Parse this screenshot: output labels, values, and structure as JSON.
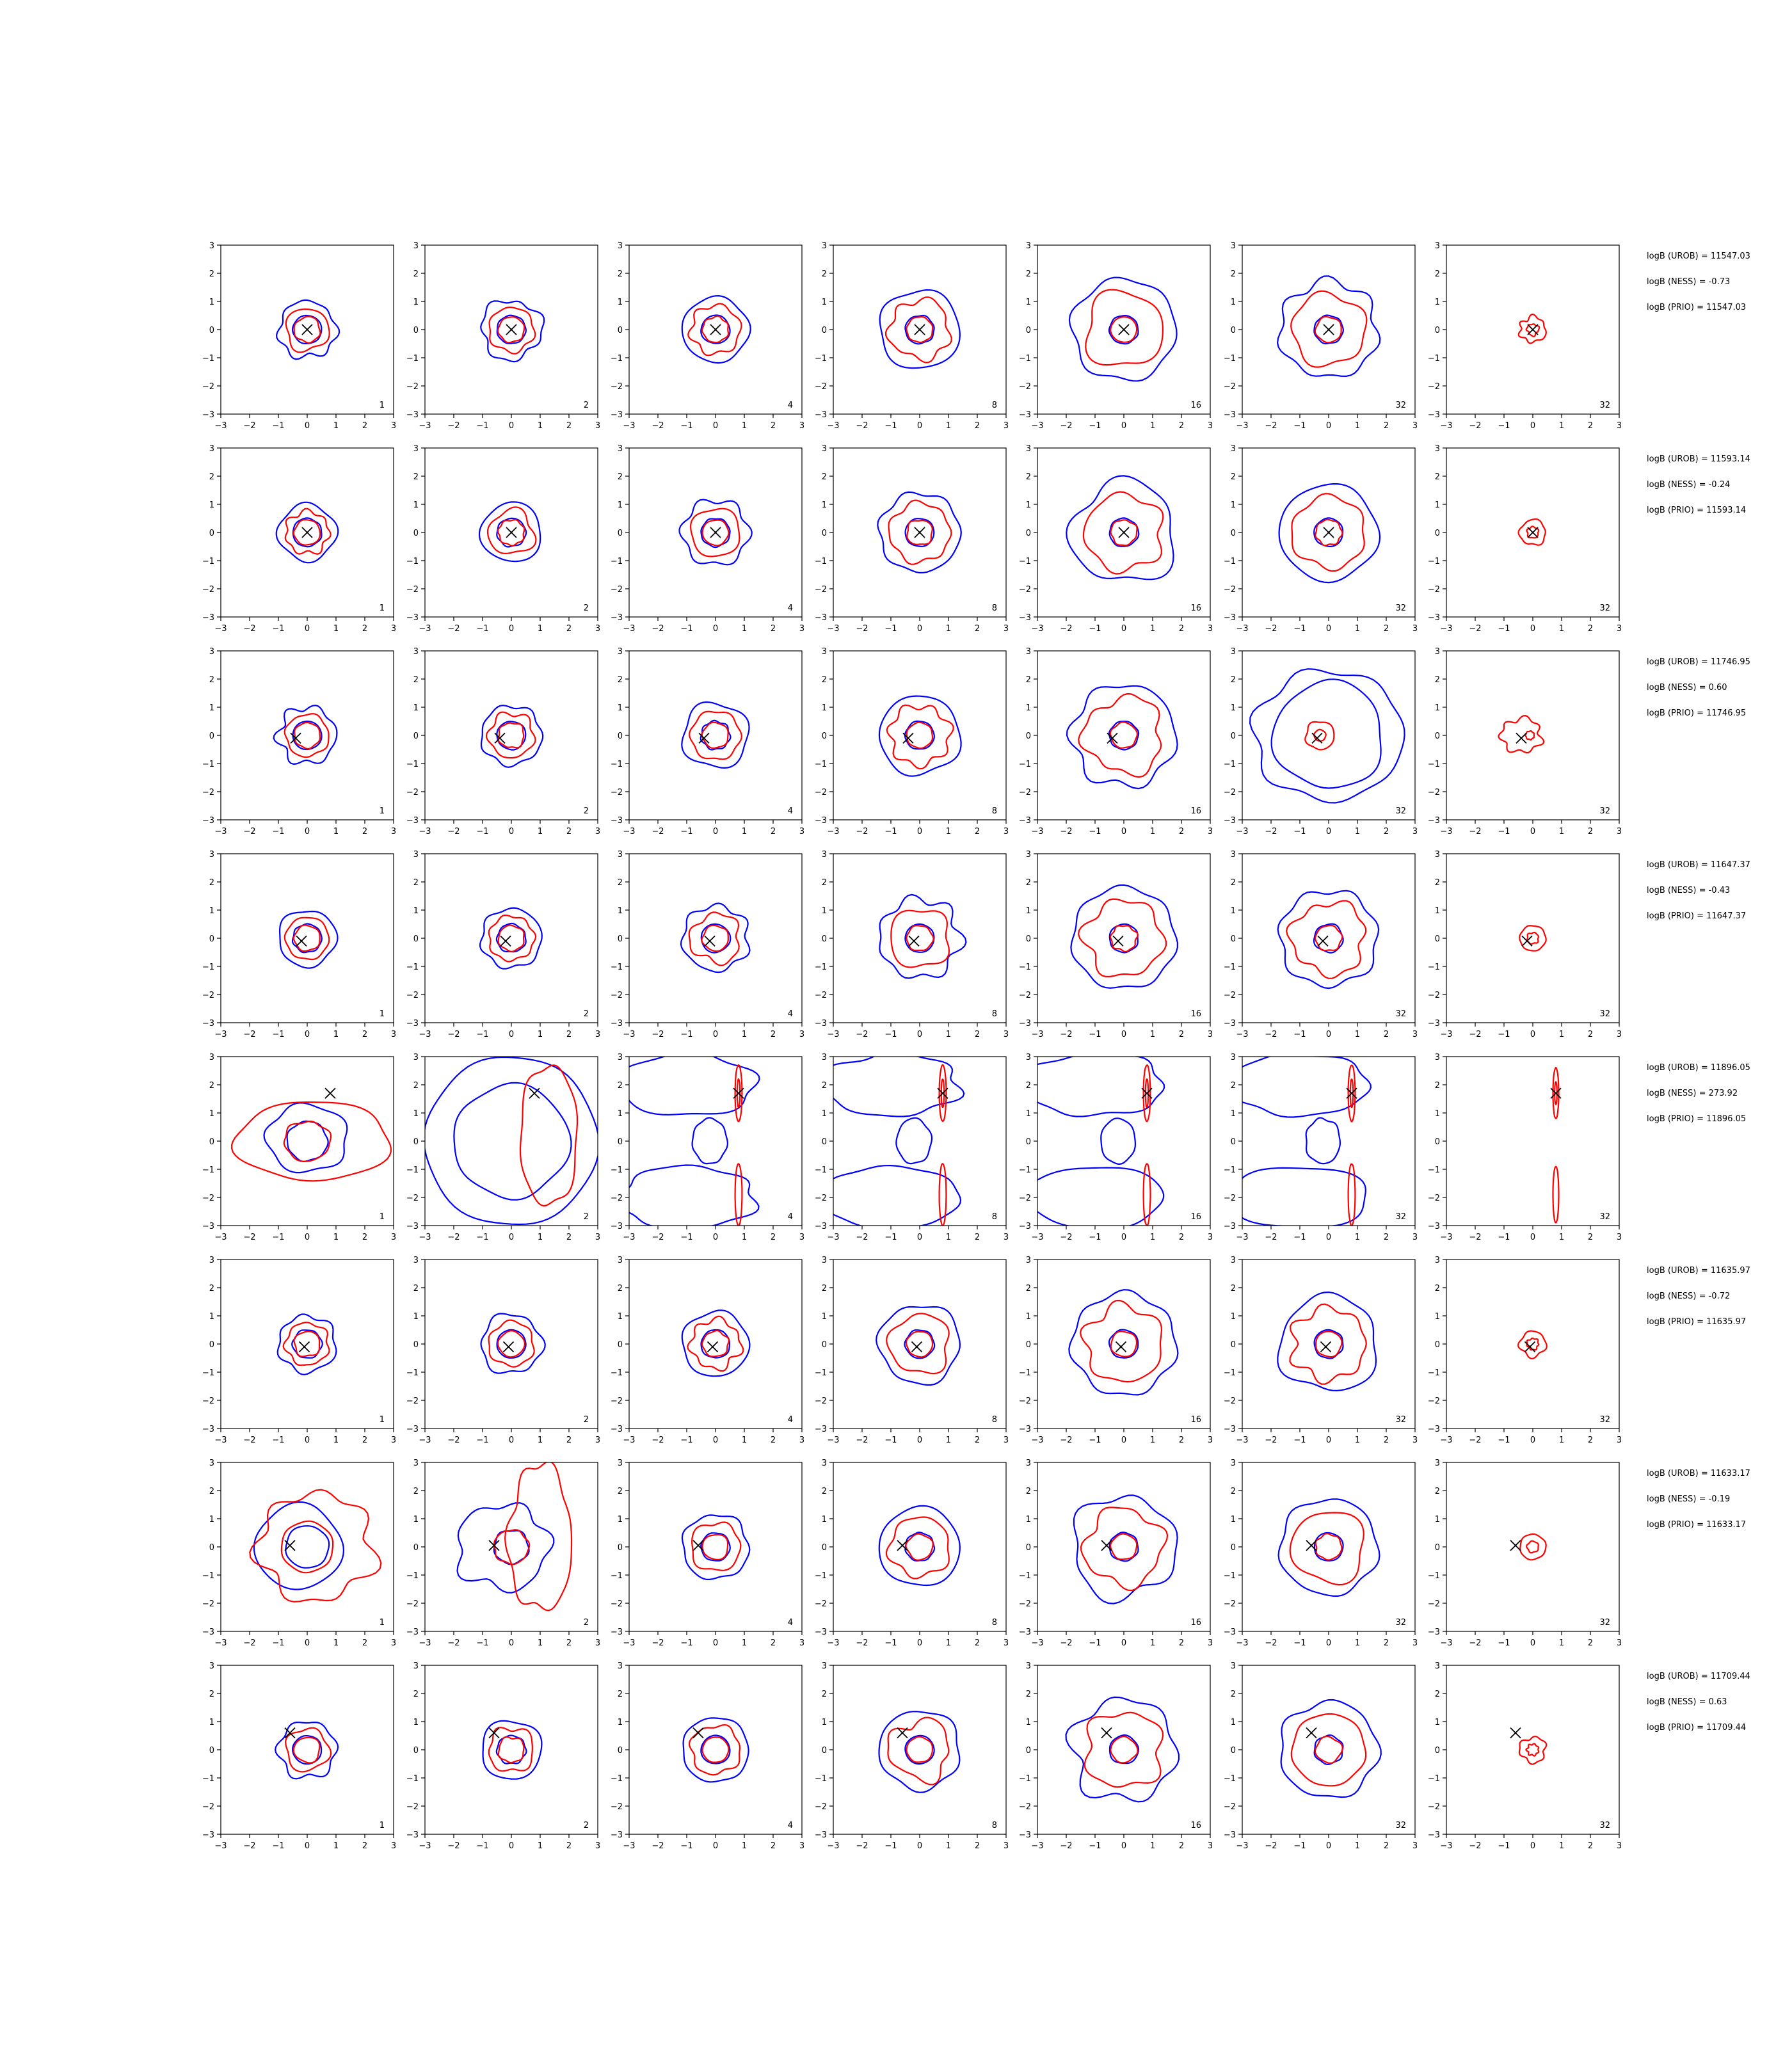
{
  "chart_data": {
    "type": "contour-grid",
    "rows": 8,
    "cols": 7,
    "xlim": [
      -3,
      3
    ],
    "ylim": [
      -3,
      3
    ],
    "xticks": [
      -3,
      -2,
      -1,
      0,
      1,
      2,
      3
    ],
    "yticks": [
      -3,
      -2,
      -1,
      0,
      1,
      2,
      3
    ],
    "colors": {
      "outer": "#0000ff",
      "inner": "#ff0000",
      "marker": "#000000",
      "axis": "#000000"
    },
    "column_labels": [
      "1",
      "2",
      "4",
      "8",
      "16",
      "32",
      "32"
    ],
    "row_annotations": [
      [
        "logB (UROB) = 11547.03",
        "logB (NESS) = -0.73",
        "logB (PRIO) = 11547.03"
      ],
      [
        "logB (UROB) = 11593.14",
        "logB (NESS) = -0.24",
        "logB (PRIO) = 11593.14"
      ],
      [
        "logB (UROB) = 11746.95",
        "logB (NESS) = 0.60",
        "logB (PRIO) = 11746.95"
      ],
      [
        "logB (UROB) = 11647.37",
        "logB (NESS) = -0.43",
        "logB (PRIO) = 11647.37"
      ],
      [
        "logB (UROB) = 11896.05",
        "logB (NESS) = 273.92",
        "logB (PRIO) = 11896.05"
      ],
      [
        "logB (UROB) = 11635.97",
        "logB (NESS) = -0.72",
        "logB (PRIO) = 11635.97"
      ],
      [
        "logB (UROB) = 11633.17",
        "logB (NESS) = -0.19",
        "logB (PRIO) = 11633.17"
      ],
      [
        "logB (UROB) = 11709.44",
        "logB (NESS) = 0.63",
        "logB (PRIO) = 11709.44"
      ]
    ],
    "markers": [
      [
        0,
        0
      ],
      [
        0,
        0
      ],
      [
        -0.4,
        -0.1
      ],
      [
        -0.2,
        -0.1
      ],
      [
        0.8,
        1.7
      ],
      [
        -0.1,
        -0.1
      ],
      [
        -0.6,
        0.05
      ],
      [
        -0.6,
        0.6
      ]
    ]
  }
}
